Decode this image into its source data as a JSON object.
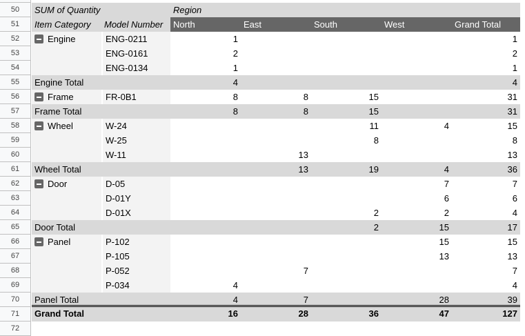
{
  "row_numbers": [
    "50",
    "51",
    "52",
    "53",
    "54",
    "55",
    "56",
    "57",
    "58",
    "59",
    "60",
    "61",
    "62",
    "63",
    "64",
    "65",
    "66",
    "67",
    "68",
    "69",
    "70",
    "71",
    "72"
  ],
  "pivot": {
    "values_label": "SUM of Quantity",
    "column_field": "Region",
    "row_fields": [
      "Item Category",
      "Model Number"
    ],
    "columns": [
      "North",
      "East",
      "South",
      "West",
      "Grand Total"
    ],
    "groups": [
      {
        "category": "Engine",
        "rows": [
          [
            "ENG-0211",
            "1",
            "",
            "",
            "",
            "1"
          ],
          [
            "ENG-0161",
            "2",
            "",
            "",
            "",
            "2"
          ],
          [
            "ENG-0134",
            "1",
            "",
            "",
            "",
            "1"
          ]
        ],
        "total_label": "Engine Total",
        "total": [
          "4",
          "",
          "",
          "",
          "4"
        ]
      },
      {
        "category": "Frame",
        "rows": [
          [
            "FR-0B1",
            "8",
            "8",
            "15",
            "",
            "31"
          ]
        ],
        "total_label": "Frame Total",
        "total": [
          "8",
          "8",
          "15",
          "",
          "31"
        ]
      },
      {
        "category": "Wheel",
        "rows": [
          [
            "W-24",
            "",
            "",
            "11",
            "4",
            "15"
          ],
          [
            "W-25",
            "",
            "",
            "8",
            "",
            "8"
          ],
          [
            "W-11",
            "",
            "13",
            "",
            "",
            "13"
          ]
        ],
        "total_label": "Wheel Total",
        "total": [
          "",
          "13",
          "19",
          "4",
          "36"
        ]
      },
      {
        "category": "Door",
        "rows": [
          [
            "D-05",
            "",
            "",
            "",
            "7",
            "7"
          ],
          [
            "D-01Y",
            "",
            "",
            "",
            "6",
            "6"
          ],
          [
            "D-01X",
            "",
            "",
            "2",
            "2",
            "4"
          ]
        ],
        "total_label": "Door Total",
        "total": [
          "",
          "",
          "2",
          "15",
          "17"
        ]
      },
      {
        "category": "Panel",
        "rows": [
          [
            "P-102",
            "",
            "",
            "",
            "15",
            "15"
          ],
          [
            "P-105",
            "",
            "",
            "",
            "13",
            "13"
          ],
          [
            "P-052",
            "",
            "7",
            "",
            "",
            "7"
          ],
          [
            "P-034",
            "4",
            "",
            "",
            "",
            "4"
          ]
        ],
        "total_label": "Panel Total",
        "total": [
          "4",
          "7",
          "",
          "28",
          "39"
        ]
      }
    ],
    "grand_total_label": "Grand Total",
    "grand_total": [
      "16",
      "28",
      "36",
      "47",
      "127"
    ]
  }
}
